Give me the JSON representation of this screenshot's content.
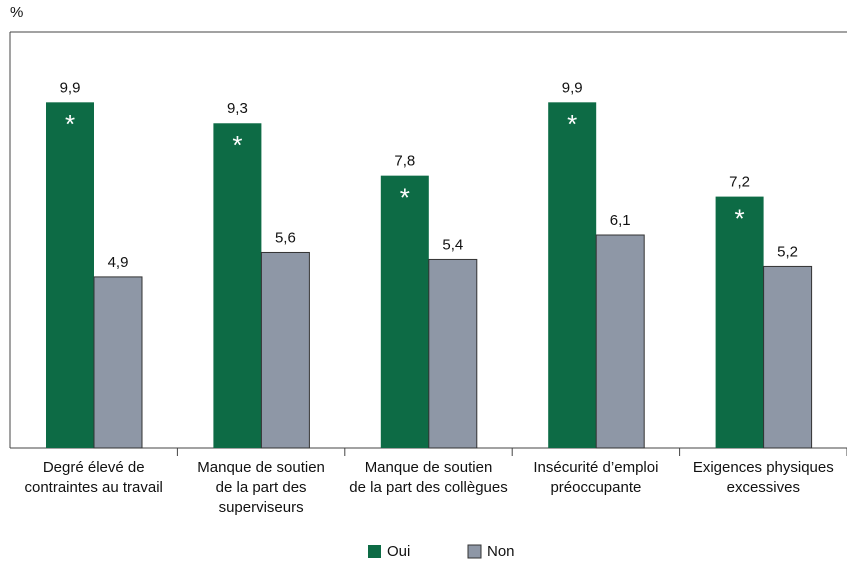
{
  "chart_data": {
    "type": "bar",
    "y_axis_label": "%",
    "categories": [
      "Degré élevé de\ncontraintes au travail",
      "Manque de soutien\nde la part des\nsuperviseurs",
      "Manque de soutien\nde la part des collègues",
      "Insécurité d’emploi\npréoccupante",
      "Exigences physiques\nexcessives"
    ],
    "series": [
      {
        "name": "Oui",
        "color": "#0d6b45",
        "values": [
          9.9,
          9.3,
          7.8,
          9.9,
          7.2
        ],
        "value_labels": [
          "9,9",
          "9,3",
          "7,8",
          "9,9",
          "7,2"
        ],
        "value_annotations": [
          "*",
          "*",
          "*",
          "*",
          "*"
        ]
      },
      {
        "name": "Non",
        "color": "#8e97a6",
        "values": [
          4.9,
          5.6,
          5.4,
          6.1,
          5.2
        ],
        "value_labels": [
          "4,9",
          "5,6",
          "5,4",
          "6,1",
          "5,2"
        ]
      }
    ],
    "ylim": [
      0,
      12
    ]
  }
}
